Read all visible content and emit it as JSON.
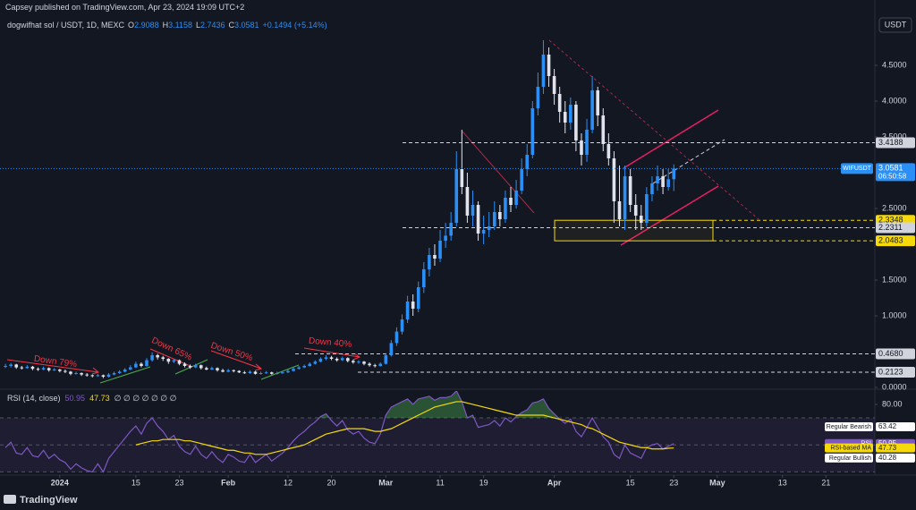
{
  "header": {
    "published": "Capsey published on TradingView.com, Apr 23, 2024 19:09 UTC+2",
    "symbol": "dogwifhat sol / USDT, 1D, MEXC",
    "ohlc": [
      {
        "key": "O",
        "value": "2.9088"
      },
      {
        "key": "H",
        "value": "3.1158"
      },
      {
        "key": "L",
        "value": "2.7436"
      },
      {
        "key": "C",
        "value": "3.0581"
      }
    ],
    "change": "+0.1494 (+5.14%)",
    "currency": "USDT"
  },
  "chart_data": [
    {
      "type": "candlestick",
      "x": [
        -10,
        -9,
        -8,
        -7,
        -6,
        -5,
        -4,
        -3,
        -2,
        -1,
        0,
        1,
        2,
        3,
        4,
        5,
        6,
        7,
        8,
        9,
        10,
        11,
        12,
        13,
        14,
        15,
        16,
        17,
        18,
        19,
        20,
        21,
        22,
        23,
        24,
        25,
        26,
        27,
        28,
        29,
        30,
        31,
        32,
        33,
        34,
        35,
        36,
        37,
        38,
        39,
        40,
        41,
        42,
        43,
        44,
        45,
        46,
        47,
        48,
        49,
        50,
        51,
        52,
        53,
        54,
        55,
        56,
        57,
        58,
        59,
        60,
        61,
        62,
        63,
        64,
        65,
        66,
        67,
        68,
        69,
        70,
        71,
        72,
        73,
        74,
        75,
        76,
        77,
        78,
        79,
        80,
        81,
        82,
        83,
        84,
        85,
        86,
        87,
        88,
        89,
        90,
        91,
        92,
        93,
        94,
        95,
        96,
        97,
        98,
        99,
        100,
        101,
        102,
        103,
        104,
        105,
        106,
        107,
        108,
        109,
        110,
        111,
        112,
        113
      ],
      "open": [
        0.29,
        0.3,
        0.32,
        0.28,
        0.27,
        0.29,
        0.26,
        0.25,
        0.27,
        0.24,
        0.25,
        0.23,
        0.22,
        0.19,
        0.2,
        0.18,
        0.17,
        0.16,
        0.17,
        0.15,
        0.18,
        0.2,
        0.22,
        0.25,
        0.28,
        0.33,
        0.3,
        0.38,
        0.45,
        0.42,
        0.4,
        0.36,
        0.38,
        0.33,
        0.3,
        0.28,
        0.31,
        0.27,
        0.25,
        0.27,
        0.24,
        0.22,
        0.24,
        0.23,
        0.21,
        0.2,
        0.22,
        0.19,
        0.2,
        0.21,
        0.19,
        0.2,
        0.21,
        0.23,
        0.26,
        0.28,
        0.3,
        0.33,
        0.36,
        0.4,
        0.42,
        0.4,
        0.38,
        0.41,
        0.37,
        0.35,
        0.36,
        0.33,
        0.31,
        0.3,
        0.33,
        0.45,
        0.62,
        0.78,
        0.95,
        1.2,
        1.1,
        1.4,
        1.65,
        1.85,
        1.8,
        2.05,
        2.12,
        2.3,
        3.05,
        2.8,
        2.4,
        2.55,
        2.15,
        2.2,
        2.25,
        2.45,
        2.35,
        2.65,
        2.55,
        2.75,
        3.05,
        3.25,
        3.9,
        4.2,
        4.65,
        4.35,
        4.1,
        3.85,
        3.7,
        3.95,
        3.45,
        3.25,
        3.6,
        4.15,
        3.8,
        3.4,
        3.2,
        2.6,
        2.35,
        2.95,
        2.55,
        2.4,
        2.3,
        2.7,
        2.85,
        2.95,
        2.8,
        2.9088
      ],
      "high": [
        0.33,
        0.34,
        0.33,
        0.3,
        0.31,
        0.3,
        0.28,
        0.29,
        0.28,
        0.27,
        0.26,
        0.25,
        0.23,
        0.22,
        0.21,
        0.2,
        0.18,
        0.19,
        0.18,
        0.2,
        0.22,
        0.24,
        0.27,
        0.31,
        0.36,
        0.35,
        0.41,
        0.49,
        0.47,
        0.44,
        0.41,
        0.4,
        0.39,
        0.35,
        0.32,
        0.33,
        0.32,
        0.29,
        0.29,
        0.28,
        0.26,
        0.26,
        0.25,
        0.24,
        0.23,
        0.24,
        0.23,
        0.22,
        0.23,
        0.22,
        0.22,
        0.23,
        0.25,
        0.28,
        0.3,
        0.32,
        0.35,
        0.38,
        0.42,
        0.45,
        0.44,
        0.42,
        0.43,
        0.42,
        0.39,
        0.38,
        0.37,
        0.35,
        0.33,
        0.35,
        0.48,
        0.66,
        0.84,
        1.02,
        1.28,
        1.3,
        1.48,
        1.75,
        1.95,
        2.0,
        2.2,
        2.3,
        2.45,
        3.3,
        3.6,
        3.0,
        2.75,
        2.6,
        2.4,
        2.45,
        2.6,
        2.55,
        2.75,
        2.8,
        2.9,
        3.2,
        3.4,
        4.0,
        4.4,
        4.85,
        4.75,
        4.45,
        4.2,
        4.0,
        4.05,
        4.0,
        3.55,
        3.75,
        4.35,
        4.2,
        3.9,
        3.55,
        3.3,
        3.1,
        3.1,
        3.05,
        2.7,
        2.55,
        2.8,
        2.95,
        3.1,
        3.05,
        3.05,
        3.1158
      ],
      "low": [
        0.27,
        0.28,
        0.26,
        0.25,
        0.26,
        0.24,
        0.23,
        0.24,
        0.22,
        0.23,
        0.21,
        0.2,
        0.17,
        0.18,
        0.16,
        0.15,
        0.14,
        0.15,
        0.13,
        0.14,
        0.17,
        0.19,
        0.21,
        0.24,
        0.27,
        0.28,
        0.29,
        0.36,
        0.39,
        0.37,
        0.33,
        0.34,
        0.31,
        0.28,
        0.26,
        0.27,
        0.25,
        0.24,
        0.24,
        0.22,
        0.21,
        0.21,
        0.21,
        0.2,
        0.19,
        0.19,
        0.18,
        0.18,
        0.19,
        0.18,
        0.18,
        0.19,
        0.2,
        0.22,
        0.25,
        0.27,
        0.29,
        0.32,
        0.35,
        0.38,
        0.38,
        0.36,
        0.37,
        0.35,
        0.33,
        0.33,
        0.31,
        0.29,
        0.28,
        0.29,
        0.32,
        0.43,
        0.58,
        0.74,
        0.9,
        1.0,
        1.05,
        1.32,
        1.55,
        1.7,
        1.75,
        1.95,
        2.05,
        2.25,
        2.7,
        2.3,
        2.25,
        2.05,
        2.0,
        2.1,
        2.2,
        2.25,
        2.3,
        2.45,
        2.5,
        2.7,
        2.95,
        3.2,
        3.8,
        4.1,
        4.2,
        3.95,
        3.7,
        3.55,
        3.6,
        3.3,
        3.1,
        3.15,
        3.55,
        3.65,
        3.3,
        3.1,
        2.3,
        2.25,
        2.2,
        2.45,
        2.2,
        2.2,
        2.25,
        2.6,
        2.75,
        2.7,
        2.75,
        2.7436
      ],
      "close": [
        0.3,
        0.32,
        0.28,
        0.27,
        0.29,
        0.26,
        0.25,
        0.27,
        0.24,
        0.25,
        0.23,
        0.22,
        0.19,
        0.2,
        0.18,
        0.17,
        0.16,
        0.17,
        0.15,
        0.18,
        0.2,
        0.22,
        0.25,
        0.28,
        0.33,
        0.3,
        0.38,
        0.45,
        0.42,
        0.4,
        0.36,
        0.38,
        0.33,
        0.3,
        0.28,
        0.31,
        0.27,
        0.25,
        0.27,
        0.24,
        0.22,
        0.24,
        0.23,
        0.21,
        0.2,
        0.22,
        0.19,
        0.2,
        0.21,
        0.19,
        0.2,
        0.21,
        0.23,
        0.26,
        0.28,
        0.3,
        0.33,
        0.36,
        0.4,
        0.42,
        0.4,
        0.38,
        0.41,
        0.37,
        0.35,
        0.36,
        0.33,
        0.31,
        0.3,
        0.33,
        0.45,
        0.62,
        0.78,
        0.95,
        1.2,
        1.1,
        1.4,
        1.65,
        1.85,
        1.8,
        2.05,
        2.12,
        2.3,
        3.05,
        2.8,
        2.4,
        2.55,
        2.15,
        2.2,
        2.25,
        2.45,
        2.35,
        2.65,
        2.55,
        2.75,
        3.05,
        3.25,
        3.9,
        4.2,
        4.65,
        4.35,
        4.1,
        3.85,
        3.7,
        3.95,
        3.45,
        3.25,
        3.6,
        4.15,
        3.8,
        3.4,
        3.2,
        2.6,
        2.35,
        2.95,
        2.55,
        2.4,
        2.3,
        2.7,
        2.85,
        2.95,
        2.8,
        2.9088,
        3.0581
      ],
      "up_color": "#2a8ff7",
      "down_color": "#e0e3eb",
      "xlim": [
        -11,
        150
      ],
      "ylim": [
        0,
        5.1625
      ],
      "yticks": [
        {
          "value": 0,
          "label": "0.0000"
        },
        {
          "value": 1,
          "label": "1.0000"
        },
        {
          "value": 1.5,
          "label": "1.5000"
        },
        {
          "value": 2.5,
          "label": "2.5000"
        },
        {
          "value": 3.5,
          "label": "3.5000"
        },
        {
          "value": 4,
          "label": "4.0000"
        },
        {
          "value": 4.5,
          "label": "4.5000"
        }
      ],
      "xticks": [
        {
          "value": 0,
          "label": "2024"
        },
        {
          "value": 14,
          "label": "15"
        },
        {
          "value": 22,
          "label": "23"
        },
        {
          "value": 31,
          "label": "Feb"
        },
        {
          "value": 42,
          "label": "12"
        },
        {
          "value": 50,
          "label": "20"
        },
        {
          "value": 60,
          "label": "Mar"
        },
        {
          "value": 70,
          "label": "11"
        },
        {
          "value": 78,
          "label": "19"
        },
        {
          "value": 91,
          "label": "Apr"
        },
        {
          "value": 105,
          "label": "15"
        },
        {
          "value": 113,
          "label": "23"
        },
        {
          "value": 121,
          "label": "May"
        },
        {
          "value": 133,
          "label": "13"
        },
        {
          "value": 141,
          "label": "21"
        }
      ],
      "price_levels": [
        {
          "value": 3.4188,
          "color": "#d1d4dc"
        },
        {
          "value": 2.3348,
          "color": "#f5d90a"
        },
        {
          "value": 2.2311,
          "color": "#d1d4dc"
        },
        {
          "value": 2.0483,
          "color": "#f5d90a"
        },
        {
          "value": 0.468,
          "label": "0.4680",
          "color": "#d1d4dc"
        },
        {
          "value": 0.2123,
          "color": "#d1d4dc"
        }
      ],
      "last_price": {
        "symbol": "WIFUSDT",
        "value": 3.0581,
        "countdown": "06:50:58",
        "color": "#2a8ff7"
      },
      "annotations": [
        "Down 79%",
        "Down 65%",
        "Down 50%",
        "Down 40%"
      ]
    },
    {
      "type": "line",
      "title": "RSI (14, close)",
      "extra": "∅ ∅ ∅ ∅ ∅ ∅ ∅",
      "series": [
        {
          "name": "RSI",
          "color": "#7e57c2",
          "values": [
            48,
            52,
            44,
            43,
            48,
            42,
            41,
            46,
            40,
            43,
            39,
            37,
            32,
            36,
            33,
            31,
            30,
            36,
            30,
            40,
            45,
            50,
            55,
            60,
            64,
            58,
            66,
            70,
            64,
            60,
            54,
            57,
            49,
            45,
            43,
            49,
            43,
            40,
            45,
            40,
            37,
            43,
            41,
            38,
            37,
            43,
            37,
            40,
            43,
            38,
            41,
            44,
            48,
            53,
            57,
            60,
            64,
            67,
            71,
            73,
            68,
            64,
            68,
            61,
            58,
            60,
            55,
            52,
            51,
            58,
            72,
            78,
            80,
            82,
            84,
            80,
            84,
            85,
            86,
            83,
            85,
            85,
            86,
            90,
            82,
            70,
            72,
            63,
            64,
            65,
            68,
            64,
            70,
            67,
            71,
            74,
            76,
            81,
            82,
            84,
            77,
            73,
            69,
            66,
            69,
            60,
            56,
            63,
            70,
            63,
            56,
            52,
            43,
            40,
            50,
            44,
            42,
            40,
            48,
            50,
            51,
            47,
            49,
            50.95
          ]
        },
        {
          "name": "RSI-based MA",
          "color": "#f5d90a",
          "values": [
            null,
            null,
            null,
            null,
            null,
            null,
            null,
            null,
            null,
            null,
            null,
            null,
            null,
            null,
            null,
            null,
            null,
            null,
            null,
            null,
            null,
            null,
            null,
            null,
            50,
            51,
            52,
            53,
            53,
            54,
            54,
            54,
            54,
            53,
            53,
            52,
            51,
            50,
            49,
            48,
            47,
            46,
            46,
            45,
            44,
            44,
            43,
            43,
            43,
            44,
            45,
            46,
            47,
            48,
            49,
            50,
            52,
            54,
            56,
            58,
            59,
            60,
            61,
            62,
            62,
            62,
            62,
            61,
            60,
            60,
            61,
            62,
            64,
            66,
            68,
            70,
            72,
            74,
            76,
            78,
            79,
            80,
            81,
            82,
            82,
            81,
            80,
            79,
            78,
            77,
            76,
            75,
            74,
            73,
            72,
            72,
            72,
            72,
            72,
            72,
            71,
            70,
            69,
            68,
            67,
            66,
            65,
            63,
            62,
            60,
            58,
            56,
            54,
            52,
            51,
            50,
            49,
            48,
            48,
            47,
            47,
            47,
            47.5,
            47.73
          ]
        }
      ],
      "ylim": [
        28.3,
        89.9
      ],
      "yticks": [
        {
          "value": 80,
          "label": "80.00"
        }
      ],
      "levels": [
        30,
        50,
        70
      ],
      "markers": [
        {
          "name": "Regular Bearish",
          "value": 63.42
        },
        {
          "name": "Regular Bullish",
          "value": 40.28
        }
      ]
    }
  ],
  "footer": "TradingView"
}
